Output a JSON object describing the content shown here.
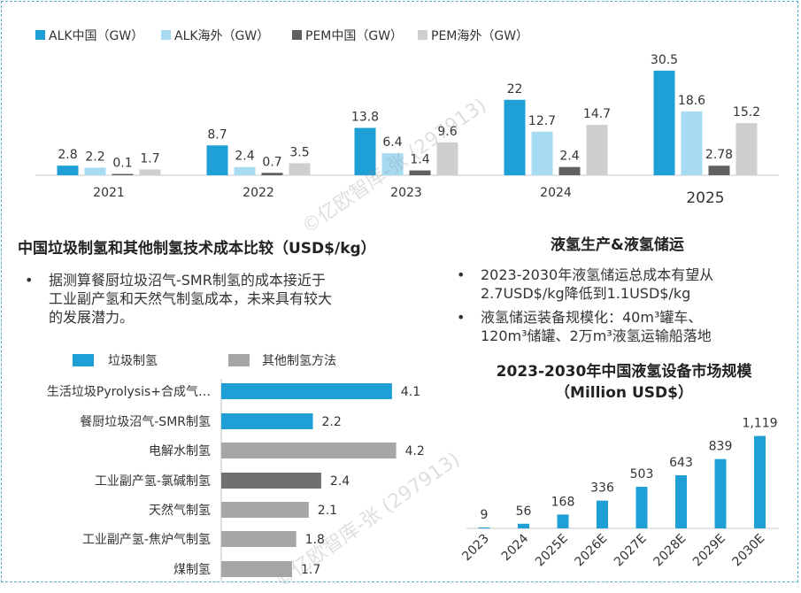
{
  "colors": {
    "alk_cn": "#1e9fd6",
    "alk_os": "#a6dbf2",
    "pem_cn": "#606060",
    "pem_os": "#cfcfcf",
    "waste": "#1e9fd6",
    "other": "#a6a6a6",
    "chlor": "#707070",
    "border": "#4fb3cf"
  },
  "chart_data": [
    {
      "type": "bar",
      "categories": [
        "2021",
        "2022",
        "2023",
        "2024",
        "2025"
      ],
      "series": [
        {
          "name": "ALK中国（GW）",
          "values": [
            2.8,
            8.7,
            13.8,
            22,
            30.5
          ]
        },
        {
          "name": "ALK海外（GW）",
          "values": [
            2.2,
            2.4,
            6.4,
            12.7,
            18.6
          ]
        },
        {
          "name": "PEM中国（GW）",
          "values": [
            0.1,
            0.7,
            1.4,
            2.4,
            2.78
          ]
        },
        {
          "name": "PEM海外（GW）",
          "values": [
            1.7,
            3.5,
            9.6,
            14.7,
            15.2
          ]
        }
      ],
      "legend": "top-left",
      "ylim": [
        0,
        32
      ]
    },
    {
      "type": "bar",
      "orientation": "horizontal",
      "categories": [
        "生活垃圾Pyrolysis+合成气…",
        "餐厨垃圾沼气-SMR制氢",
        "电解水制氢",
        "工业副产氢-氯碱制氢",
        "天然气制氢",
        "工业副产氢-焦炉气制氢",
        "煤制氢"
      ],
      "values": [
        4.1,
        2.2,
        4.2,
        2.4,
        2.1,
        1.8,
        1.7
      ],
      "groups": [
        "waste",
        "waste",
        "other",
        "other_dark",
        "other",
        "other",
        "other"
      ],
      "legend_items": [
        "垃圾制氢",
        "其他制氢方法"
      ],
      "legend": "top",
      "xlim": [
        0,
        4.4
      ]
    },
    {
      "type": "bar",
      "categories": [
        "2023",
        "2024",
        "2025E",
        "2026E",
        "2027E",
        "2028E",
        "2029E",
        "2030E"
      ],
      "values": [
        9,
        56,
        168,
        336,
        503,
        643,
        839,
        1119
      ],
      "value_labels": [
        "9",
        "56",
        "168",
        "336",
        "503",
        "643",
        "839",
        "1,119"
      ],
      "title": "2023-2030年中国液氢设备市场规模",
      "subtitle": "（Million USD$）",
      "ylim": [
        0,
        1200
      ]
    }
  ],
  "cost_section": {
    "heading": "中国垃圾制氢和其他制氢技术成本比较（USD$/kg）",
    "bullet": "•",
    "lines": [
      "据测算餐厨垃圾沼气-SMR制氢的成本接近于",
      "工业副产氢和天然气制氢成本，未来具有较大",
      "的发展潜力。"
    ]
  },
  "lh2_section": {
    "heading": "液氢生产&液氢储运",
    "bullet": "•",
    "bullets": [
      [
        "2023-2030年液氢储运总成本有望从",
        "2.7USD$/kg降低到1.1USD$/kg"
      ],
      [
        "液氢储运装备规模化：40m³罐车、",
        "120m³储罐、2万m³液氢运输船落地"
      ]
    ]
  },
  "watermark": "©亿欧智库-张 (297913)"
}
